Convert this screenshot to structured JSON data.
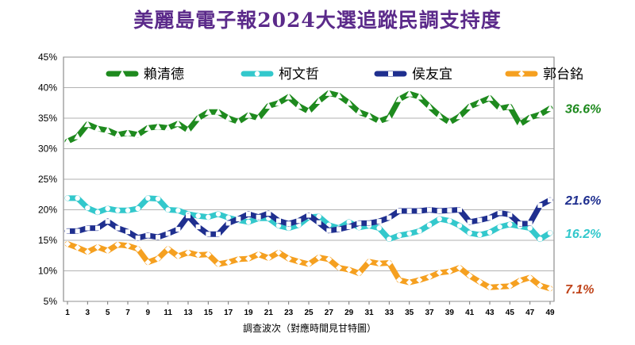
{
  "chart_data": {
    "type": "line",
    "title": "美麗島電子報2024大選追蹤民調支持度",
    "xlabel": "調查波次（對應時間見甘特圖）",
    "ylabel": "",
    "ylim": [
      5,
      45
    ],
    "yticks": [
      "5%",
      "10%",
      "15%",
      "20%",
      "25%",
      "30%",
      "35%",
      "40%",
      "45%"
    ],
    "x": [
      1,
      2,
      3,
      4,
      5,
      6,
      7,
      8,
      9,
      10,
      11,
      12,
      13,
      14,
      15,
      16,
      17,
      18,
      19,
      20,
      21,
      22,
      23,
      24,
      25,
      26,
      27,
      28,
      29,
      30,
      31,
      32,
      33,
      34,
      35,
      36,
      37,
      38,
      39,
      40,
      41,
      42,
      43,
      44,
      45,
      46,
      47,
      48,
      49
    ],
    "xticks": [
      "1",
      "3",
      "5",
      "7",
      "9",
      "11",
      "13",
      "15",
      "17",
      "19",
      "21",
      "23",
      "25",
      "27",
      "29",
      "31",
      "33",
      "35",
      "37",
      "39",
      "41",
      "43",
      "45",
      "47",
      "49"
    ],
    "grid": true,
    "legend_position": "top",
    "series": [
      {
        "name": "賴清德",
        "color": "#1e8a1e",
        "marker": "triangle",
        "end_label": "36.6%",
        "label_color": "#1e8a1e",
        "values": [
          31.2,
          32.0,
          34.0,
          33.3,
          33.0,
          32.3,
          32.6,
          32.3,
          33.4,
          33.6,
          33.4,
          34.1,
          33.0,
          35.0,
          36.0,
          36.0,
          35.0,
          34.4,
          35.5,
          35.0,
          37.0,
          37.5,
          38.5,
          37.0,
          36.1,
          37.8,
          39.1,
          38.7,
          37.5,
          36.0,
          35.4,
          34.5,
          35.1,
          38.1,
          39.0,
          38.5,
          36.9,
          35.4,
          34.3,
          35.3,
          36.9,
          37.6,
          38.3,
          36.6,
          36.9,
          34.0,
          35.1,
          35.6,
          36.6
        ]
      },
      {
        "name": "柯文哲",
        "color": "#33c8cc",
        "marker": "circle",
        "end_label": "16.2%",
        "label_color": "#33c8cc",
        "values": [
          21.9,
          21.9,
          20.3,
          19.6,
          20.2,
          19.9,
          19.9,
          20.2,
          21.9,
          21.8,
          20.0,
          19.9,
          19.3,
          19.0,
          18.8,
          19.3,
          18.7,
          18.3,
          18.0,
          18.6,
          18.6,
          17.4,
          17.0,
          17.5,
          18.8,
          18.9,
          17.5,
          17.0,
          18.0,
          17.1,
          17.4,
          17.0,
          15.2,
          15.8,
          16.1,
          16.5,
          17.5,
          18.5,
          18.2,
          17.4,
          16.2,
          15.9,
          16.3,
          17.2,
          17.6,
          17.3,
          17.0,
          15.2,
          16.2
        ]
      },
      {
        "name": "侯友宜",
        "color": "#1f2f8f",
        "marker": "square",
        "end_label": "21.6%",
        "label_color": "#1f2f8f",
        "values": [
          16.5,
          16.5,
          17.0,
          17.0,
          18.1,
          17.0,
          16.4,
          15.4,
          15.8,
          15.5,
          16.1,
          16.8,
          19.0,
          17.2,
          16.0,
          16.0,
          17.8,
          18.5,
          19.3,
          18.8,
          19.4,
          18.2,
          17.7,
          18.2,
          19.1,
          17.9,
          16.6,
          16.8,
          17.2,
          17.8,
          17.8,
          18.1,
          18.7,
          19.8,
          19.8,
          19.8,
          20.0,
          19.8,
          19.9,
          20.0,
          18.0,
          18.3,
          18.7,
          19.5,
          19.2,
          17.7,
          17.8,
          20.7,
          21.6
        ]
      },
      {
        "name": "郭台銘",
        "color": "#f5a020",
        "marker": "diamond",
        "end_label": "7.1%",
        "label_color": "#c0441a",
        "values": [
          14.4,
          13.8,
          13.1,
          13.9,
          13.3,
          14.3,
          14.1,
          13.6,
          11.4,
          12.0,
          13.6,
          12.4,
          13.0,
          12.6,
          12.7,
          11.1,
          11.4,
          11.9,
          12.0,
          12.7,
          12.1,
          13.0,
          12.0,
          11.5,
          11.1,
          12.2,
          11.9,
          10.5,
          10.2,
          9.6,
          11.5,
          11.2,
          11.3,
          8.5,
          8.1,
          8.5,
          9.0,
          9.7,
          9.9,
          10.5,
          9.2,
          8.2,
          7.3,
          7.4,
          7.5,
          8.4,
          8.9,
          7.6,
          7.1
        ]
      }
    ]
  }
}
